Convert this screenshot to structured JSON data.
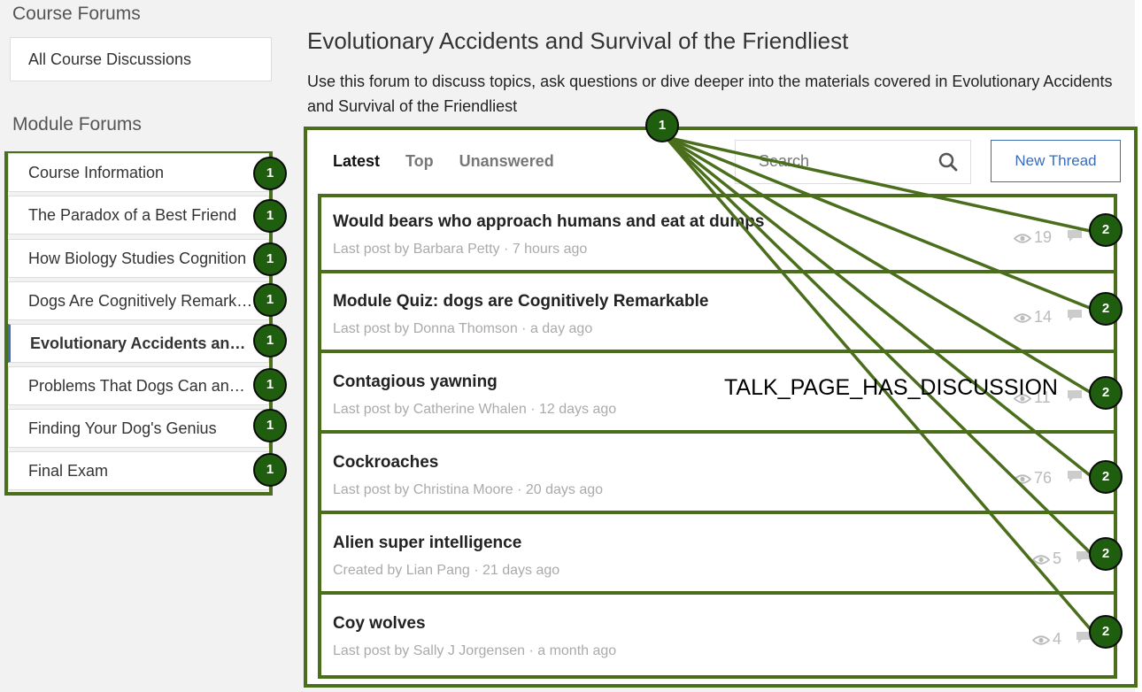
{
  "sidebar": {
    "course_forums_heading": "Course Forums",
    "all_discussions": "All Course Discussions",
    "module_forums_heading": "Module Forums",
    "modules": [
      {
        "label": "Course Information",
        "active": false
      },
      {
        "label": "The Paradox of a Best Friend",
        "active": false
      },
      {
        "label": "How Biology Studies Cognition",
        "active": false
      },
      {
        "label": "Dogs Are Cognitively Remarkable",
        "active": false
      },
      {
        "label": "Evolutionary Accidents and Survival of the Friendliest",
        "active": true
      },
      {
        "label": "Problems That Dogs Can and Cannot Solve",
        "active": false
      },
      {
        "label": "Finding Your Dog's Genius",
        "active": false
      },
      {
        "label": "Final Exam",
        "active": false
      }
    ]
  },
  "main": {
    "title": "Evolutionary Accidents and Survival of the Friendliest",
    "description": "Use this forum to discuss topics, ask questions or dive deeper into the materials covered in Evolutionary Accidents and Survival of the Friendliest",
    "tabs": [
      {
        "label": "Latest",
        "active": true
      },
      {
        "label": "Top",
        "active": false
      },
      {
        "label": "Unanswered",
        "active": false
      }
    ],
    "search_placeholder": "Search",
    "new_thread_label": "New Thread",
    "threads": [
      {
        "title": "Would bears who approach humans and eat at dumps",
        "meta": "Last post by Barbara Petty · 7 hours ago",
        "views": "19"
      },
      {
        "title": "Module Quiz: dogs are Cognitively Remarkable",
        "meta": "Last post by Donna Thomson · a day ago",
        "views": "14"
      },
      {
        "title": "Contagious yawning",
        "meta": "Last post by Catherine Whalen · 12 days ago",
        "views": "11"
      },
      {
        "title": "Cockroaches",
        "meta": "Last post by Christina Moore · 20 days ago",
        "views": "76"
      },
      {
        "title": "Alien super intelligence",
        "meta": "Created by Lian Pang · 21 days ago",
        "views": "5"
      },
      {
        "title": "Coy wolves",
        "meta": "Last post by Sally J Jorgensen · a month ago",
        "views": "4"
      }
    ]
  },
  "annotations": {
    "badge_1": "1",
    "badge_2": "2",
    "label": "TALK_PAGE_HAS_DISCUSSION",
    "color": "#4a6e1c",
    "badge_color": "#1f5e0f"
  },
  "colors": {
    "accent": "#3a6db5",
    "background": "#f2f2f2"
  }
}
